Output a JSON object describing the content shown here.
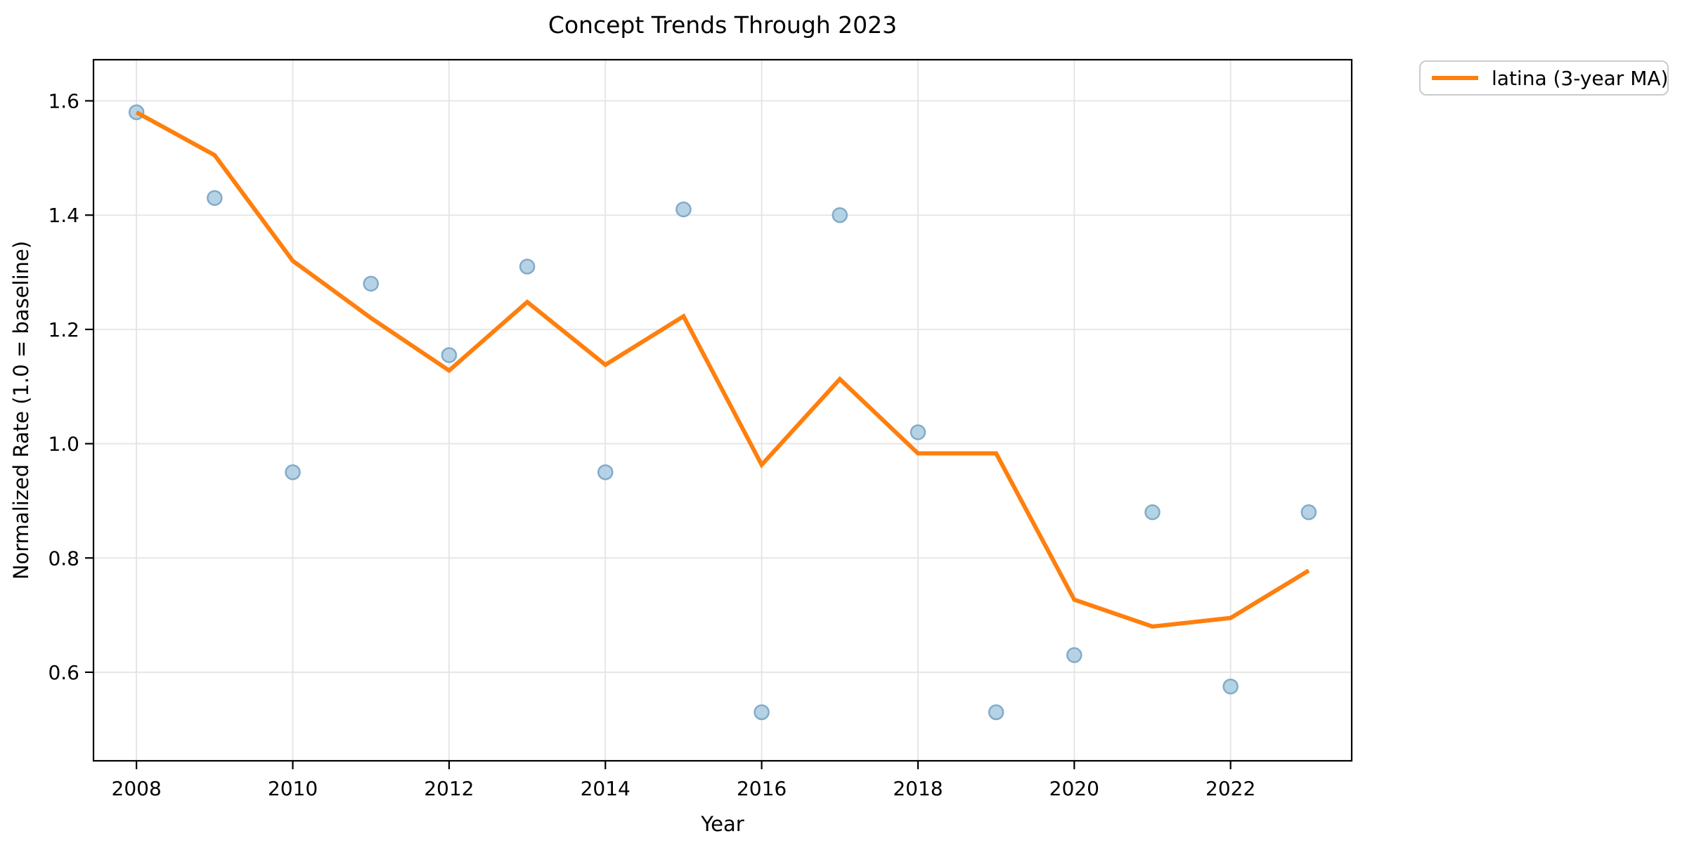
{
  "figure": {
    "title": "Concept Trends Through 2023",
    "xlabel": "Year",
    "ylabel": "Normalized Rate (1.0 = baseline)"
  },
  "legend": {
    "position": "upper-right-outside",
    "entries": [
      {
        "label": "latina (3-year MA)",
        "color": "#ff7f0e",
        "style": "line"
      }
    ]
  },
  "colors": {
    "ma_line": "#ff7f0e",
    "scatter_fill": "#a9cbe2",
    "scatter_edge": "#82abc9",
    "grid": "#e4e4e4",
    "text": "#000000",
    "background": "#ffffff",
    "legend_border": "#cccccc"
  },
  "chart_data": {
    "type": "scatter+line",
    "title": "Concept Trends Through 2023",
    "xlabel": "Year",
    "ylabel": "Normalized Rate (1.0 = baseline)",
    "grid": true,
    "legend_position": "upper right outside",
    "x": [
      2008,
      2009,
      2010,
      2011,
      2012,
      2013,
      2014,
      2015,
      2016,
      2017,
      2018,
      2019,
      2020,
      2021,
      2022,
      2023
    ],
    "series": [
      {
        "name": "",
        "type": "scatter",
        "color": "#a9cbe2",
        "edge_color": "#82abc9",
        "values": [
          1.58,
          1.43,
          0.95,
          1.28,
          1.155,
          1.31,
          0.95,
          1.41,
          0.53,
          1.4,
          1.02,
          0.53,
          0.63,
          0.88,
          0.575,
          0.88
        ]
      },
      {
        "name": "latina (3-year MA)",
        "type": "line",
        "color": "#ff7f0e",
        "values": [
          1.58,
          1.505,
          1.32,
          1.22,
          1.128,
          1.248,
          1.138,
          1.223,
          0.963,
          1.113,
          0.983,
          0.983,
          0.727,
          0.68,
          0.695,
          0.778
        ]
      }
    ],
    "xlim": [
      2007.45,
      2023.55
    ],
    "ylim": [
      0.445,
      1.672
    ],
    "xticks": [
      2008,
      2010,
      2012,
      2014,
      2016,
      2018,
      2020,
      2022
    ],
    "yticks": [
      0.6,
      0.8,
      1.0,
      1.2,
      1.4,
      1.6
    ]
  }
}
